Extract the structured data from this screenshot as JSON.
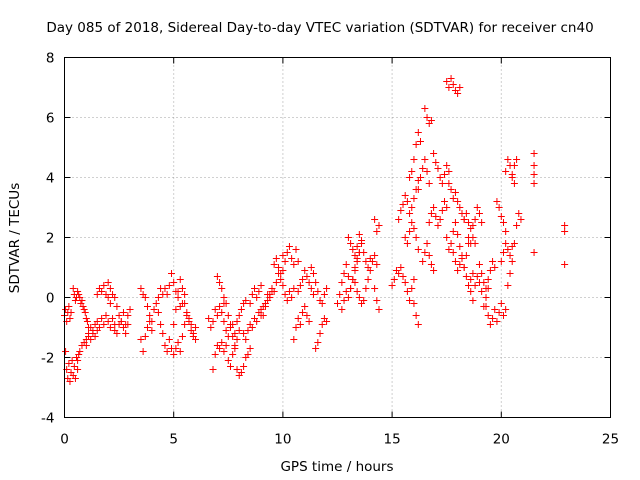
{
  "chart_data": {
    "type": "scatter",
    "title": "Day 085 of 2018, Sidereal Day-to-day VTEC variation (SDTVAR) for receiver cn40",
    "xlabel": "GPS time / hours",
    "ylabel": "SDTVAR / TECUs",
    "xlim": [
      0,
      25
    ],
    "ylim": [
      -4,
      8
    ],
    "xticks": [
      "0",
      "5",
      "10",
      "15",
      "20",
      "25"
    ],
    "yticks": [
      "-4",
      "-2",
      "0",
      "2",
      "4",
      "6",
      "8"
    ],
    "grid": true,
    "marker": "+",
    "color": "#ff0000",
    "segments": [
      {
        "x": [
          0.0,
          0.05,
          0.1,
          0.15,
          0.2,
          0.25,
          0.3
        ],
        "y": [
          -0.6,
          -0.4,
          -0.8,
          -0.5,
          -0.3,
          -0.7,
          -0.5
        ]
      },
      {
        "x": [
          0.05,
          0.1,
          0.15,
          0.2,
          0.25,
          0.3,
          0.35,
          0.4,
          0.45,
          0.5,
          0.55,
          0.6,
          0.65
        ],
        "y": [
          -1.8,
          -2.4,
          -2.7,
          -2.2,
          -2.8,
          -2.5,
          -2.1,
          -2.6,
          -2.3,
          -2.7,
          -2.0,
          -2.4,
          -1.9
        ]
      },
      {
        "x": [
          0.4,
          0.45,
          0.5,
          0.55,
          0.6,
          0.65,
          0.7,
          0.75,
          0.8,
          0.85,
          0.9,
          0.95,
          1.0,
          1.05,
          1.1
        ],
        "y": [
          0.3,
          0.1,
          -0.1,
          0.0,
          0.2,
          0.1,
          0.0,
          -0.2,
          -0.1,
          -0.3,
          -0.4,
          -0.5,
          -0.7,
          -0.8,
          -1.0
        ]
      },
      {
        "x": [
          0.6,
          0.7,
          0.8,
          0.9,
          1.0,
          1.1,
          1.2,
          1.3,
          1.4,
          1.5
        ],
        "y": [
          -2.1,
          -1.8,
          -1.6,
          -1.5,
          -1.6,
          -1.3,
          -1.4,
          -1.2,
          -1.3,
          -1.1
        ]
      },
      {
        "x": [
          1.0,
          1.1,
          1.2,
          1.3,
          1.4,
          1.5,
          1.6,
          1.7,
          1.8,
          1.9,
          2.0,
          2.1,
          2.2,
          2.3
        ],
        "y": [
          -1.4,
          -1.2,
          -1.0,
          -1.1,
          -0.9,
          -0.8,
          -1.0,
          -0.7,
          -0.9,
          -0.6,
          -0.8,
          -1.0,
          -0.7,
          -0.9
        ]
      },
      {
        "x": [
          1.5,
          1.6,
          1.7,
          1.8,
          1.9,
          2.0,
          2.1
        ],
        "y": [
          0.1,
          0.3,
          0.2,
          0.4,
          0.1,
          0.0,
          -0.2
        ]
      },
      {
        "x": [
          2.0,
          2.1,
          2.2,
          2.3,
          2.4,
          2.5,
          2.6,
          2.7,
          2.8,
          2.9,
          3.0
        ],
        "y": [
          0.5,
          0.3,
          0.1,
          0.0,
          -0.3,
          -0.6,
          -0.8,
          -0.5,
          -0.9,
          -0.6,
          -0.4
        ]
      },
      {
        "x": [
          2.3,
          2.4,
          2.5,
          2.6,
          2.7,
          2.8,
          2.9
        ],
        "y": [
          -1.1,
          -1.2,
          -0.9,
          -0.8,
          -1.0,
          -1.2,
          -0.9
        ]
      },
      {
        "x": [
          3.5,
          3.6,
          3.7,
          3.8,
          3.9,
          4.0,
          4.1,
          4.2,
          4.3,
          4.4,
          4.5
        ],
        "y": [
          0.3,
          0.1,
          0.0,
          -0.3,
          -0.6,
          -0.8,
          -0.4,
          -0.2,
          0.0,
          0.3,
          0.1
        ]
      },
      {
        "x": [
          3.5,
          3.6,
          3.7,
          3.8,
          3.9,
          4.0
        ],
        "y": [
          -1.4,
          -1.8,
          -1.3,
          -1.0,
          -0.8,
          -1.1
        ]
      },
      {
        "x": [
          4.3,
          4.4,
          4.5,
          4.6,
          4.7,
          4.8,
          4.9,
          5.0,
          5.1,
          5.2,
          5.3,
          5.4
        ],
        "y": [
          -0.5,
          -0.9,
          -1.2,
          -1.6,
          -1.8,
          -1.4,
          -1.7,
          -0.9,
          -0.4,
          0.2,
          0.6,
          0.3
        ]
      },
      {
        "x": [
          4.6,
          4.7,
          4.8,
          4.9,
          5.0,
          5.1,
          5.2,
          5.3,
          5.4,
          5.5
        ],
        "y": [
          0.3,
          0.1,
          0.4,
          0.8,
          0.5,
          0.2,
          0.0,
          -0.3,
          -0.2,
          0.1
        ]
      },
      {
        "x": [
          5.0,
          5.1,
          5.2,
          5.3,
          5.4,
          5.5,
          5.6,
          5.7,
          5.8,
          5.9,
          6.0
        ],
        "y": [
          -1.9,
          -1.7,
          -1.5,
          -1.8,
          -1.3,
          -0.9,
          -0.6,
          -0.8,
          -1.1,
          -1.3,
          -1.0
        ]
      },
      {
        "x": [
          5.5,
          5.6,
          5.7,
          5.8,
          5.9,
          6.0
        ],
        "y": [
          -0.2,
          -0.5,
          -0.7,
          -0.9,
          -1.2,
          -1.4
        ]
      },
      {
        "x": [
          6.6,
          6.7,
          6.8,
          6.9,
          7.0,
          7.1,
          7.2,
          7.3
        ],
        "y": [
          -0.7,
          -1.0,
          -0.8,
          -0.4,
          -0.6,
          -0.3,
          -0.5,
          -0.2
        ]
      },
      {
        "x": [
          6.8,
          6.9,
          7.0,
          7.1,
          7.2,
          7.3,
          7.4,
          7.5,
          7.6,
          7.7,
          7.8,
          7.9,
          8.0
        ],
        "y": [
          -2.4,
          -1.9,
          -1.6,
          -1.7,
          -1.5,
          -1.8,
          -1.6,
          -2.1,
          -2.3,
          -1.9,
          -1.7,
          -1.4,
          -1.1
        ]
      },
      {
        "x": [
          7.0,
          7.1,
          7.2,
          7.3,
          7.4,
          7.5,
          7.6,
          7.7,
          7.8
        ],
        "y": [
          0.7,
          0.5,
          0.3,
          0.0,
          -0.2,
          -0.6,
          -0.9,
          -1.3,
          -1.6
        ]
      },
      {
        "x": [
          7.3,
          7.4,
          7.5,
          7.6,
          7.7,
          7.8,
          7.9,
          8.0,
          8.1,
          8.2,
          8.3
        ],
        "y": [
          -0.8,
          -1.1,
          -1.3,
          -1.0,
          -0.9,
          -1.2,
          -0.8,
          -0.6,
          -0.4,
          -0.2,
          -0.1
        ]
      },
      {
        "x": [
          7.9,
          8.0,
          8.1,
          8.2,
          8.3,
          8.4,
          8.5
        ],
        "y": [
          -2.4,
          -2.6,
          -2.5,
          -2.3,
          -2.0,
          -1.9,
          -1.7
        ]
      },
      {
        "x": [
          8.2,
          8.3,
          8.4,
          8.5,
          8.6,
          8.7,
          8.8,
          8.9,
          9.0,
          9.1,
          9.2,
          9.3,
          9.4,
          9.5
        ],
        "y": [
          -1.2,
          -1.4,
          -1.1,
          -0.9,
          -1.0,
          -0.7,
          -0.8,
          -0.5,
          -0.6,
          -0.3,
          -0.2,
          0.1,
          0.0,
          0.2
        ]
      },
      {
        "x": [
          8.5,
          8.6,
          8.7,
          8.8,
          8.9,
          9.0
        ],
        "y": [
          -0.2,
          0.1,
          0.3,
          0.0,
          0.2,
          0.4
        ]
      },
      {
        "x": [
          9.0,
          9.1,
          9.2,
          9.3,
          9.4,
          9.5,
          9.6,
          9.7,
          9.8,
          9.9,
          10.0,
          10.1,
          10.2,
          10.3,
          10.4,
          10.5
        ],
        "y": [
          -0.4,
          -0.6,
          -0.3,
          -0.1,
          0.1,
          0.3,
          0.2,
          0.5,
          0.8,
          0.6,
          0.4,
          0.1,
          -0.1,
          0.2,
          0.0,
          0.3
        ]
      },
      {
        "x": [
          9.6,
          9.7,
          9.8,
          9.9,
          10.0
        ],
        "y": [
          1.1,
          1.3,
          1.0,
          0.8,
          0.9
        ]
      },
      {
        "x": [
          10.0,
          10.1,
          10.2,
          10.3,
          10.4,
          10.5,
          10.6,
          10.7
        ],
        "y": [
          1.4,
          1.2,
          1.5,
          1.7,
          1.3,
          1.1,
          1.6,
          1.2
        ]
      },
      {
        "x": [
          10.5,
          10.6,
          10.7,
          10.8,
          10.9,
          11.0,
          11.1,
          11.2
        ],
        "y": [
          -1.4,
          -1.0,
          -0.7,
          -0.9,
          -0.5,
          -0.3,
          -0.6,
          -0.8
        ]
      },
      {
        "x": [
          10.7,
          10.8,
          10.9,
          11.0,
          11.1,
          11.2,
          11.3,
          11.4
        ],
        "y": [
          0.2,
          0.4,
          0.6,
          0.9,
          0.7,
          0.5,
          0.3,
          0.1
        ]
      },
      {
        "x": [
          11.3,
          11.4,
          11.5,
          11.6,
          11.7,
          11.8,
          11.9,
          12.0
        ],
        "y": [
          1.0,
          0.8,
          0.5,
          0.2,
          -0.1,
          -0.2,
          0.1,
          0.3
        ]
      },
      {
        "x": [
          11.5,
          11.6,
          11.7,
          11.8,
          11.9,
          12.0
        ],
        "y": [
          -1.7,
          -1.5,
          -1.2,
          -0.9,
          -0.7,
          -0.8
        ]
      },
      {
        "x": [
          12.5,
          12.6,
          12.7,
          12.8,
          12.9,
          13.0,
          13.1,
          13.2,
          13.3,
          13.4,
          13.5,
          13.6
        ],
        "y": [
          -0.2,
          0.1,
          0.5,
          0.8,
          1.1,
          0.7,
          0.3,
          0.6,
          1.0,
          1.3,
          1.5,
          1.8
        ]
      },
      {
        "x": [
          12.7,
          12.8,
          12.9,
          13.0,
          13.1,
          13.2,
          13.3,
          13.4,
          13.5
        ],
        "y": [
          -0.4,
          -0.1,
          0.2,
          0.0,
          0.3,
          0.6,
          0.9,
          1.2,
          1.5
        ]
      },
      {
        "x": [
          13.0,
          13.1,
          13.2,
          13.3,
          13.4,
          13.5,
          13.6,
          13.7,
          13.8,
          13.9,
          14.0
        ],
        "y": [
          2.0,
          1.8,
          1.6,
          1.4,
          1.7,
          2.1,
          1.9,
          1.5,
          1.2,
          1.0,
          1.3
        ]
      },
      {
        "x": [
          13.3,
          13.4,
          13.5,
          13.6,
          13.7,
          13.8,
          13.9,
          14.0,
          14.1,
          14.2,
          14.3
        ],
        "y": [
          0.5,
          0.2,
          0.0,
          -0.2,
          -0.1,
          0.3,
          0.6,
          0.9,
          1.2,
          1.4,
          1.1
        ]
      },
      {
        "x": [
          14.2,
          14.3,
          14.4
        ],
        "y": [
          2.6,
          2.2,
          2.4
        ]
      },
      {
        "x": [
          14.2,
          14.3,
          14.4
        ],
        "y": [
          0.3,
          -0.1,
          -0.4
        ]
      },
      {
        "x": [
          15.0,
          15.1,
          15.2,
          15.3,
          15.4,
          15.5,
          15.6,
          15.7,
          15.8,
          15.9,
          16.0
        ],
        "y": [
          0.4,
          0.6,
          0.9,
          0.8,
          1.0,
          0.7,
          0.5,
          0.2,
          -0.1,
          0.3,
          0.6
        ]
      },
      {
        "x": [
          15.3,
          15.4,
          15.5,
          15.6,
          15.7,
          15.8,
          15.9,
          16.0,
          16.1,
          16.2
        ],
        "y": [
          2.6,
          2.9,
          3.1,
          3.4,
          3.2,
          2.8,
          3.0,
          3.3,
          3.6,
          3.9
        ]
      },
      {
        "x": [
          15.6,
          15.7,
          15.8,
          15.9,
          16.0,
          16.1,
          16.2
        ],
        "y": [
          2.0,
          1.8,
          2.2,
          2.5,
          2.3,
          2.0,
          1.6
        ]
      },
      {
        "x": [
          15.8,
          15.9,
          16.0,
          16.1,
          16.2,
          16.3
        ],
        "y": [
          4.0,
          4.2,
          4.6,
          5.1,
          5.5,
          5.2
        ]
      },
      {
        "x": [
          16.2,
          16.3,
          16.4,
          16.5,
          16.6,
          16.7
        ],
        "y": [
          3.6,
          4.0,
          4.3,
          4.6,
          4.2,
          3.8
        ]
      },
      {
        "x": [
          16.4,
          16.5,
          16.6,
          16.7,
          16.8,
          16.9
        ],
        "y": [
          1.2,
          1.5,
          1.8,
          1.4,
          1.1,
          0.9
        ]
      },
      {
        "x": [
          16.5,
          16.6,
          16.7,
          16.8
        ],
        "y": [
          6.3,
          6.0,
          5.8,
          5.9
        ]
      },
      {
        "x": [
          16.7,
          16.8,
          16.9,
          17.0,
          17.1,
          17.2,
          17.3,
          17.4,
          17.5
        ],
        "y": [
          2.5,
          2.8,
          3.0,
          2.7,
          2.4,
          2.6,
          2.9,
          3.2,
          3.0
        ]
      },
      {
        "x": [
          16.9,
          17.0,
          17.1,
          17.2,
          17.3,
          17.4,
          17.5,
          17.6
        ],
        "y": [
          4.8,
          4.5,
          4.3,
          4.0,
          3.8,
          4.1,
          4.4,
          4.2
        ]
      },
      {
        "x": [
          16.0,
          16.1,
          16.2
        ],
        "y": [
          -0.2,
          -0.6,
          -0.9
        ]
      },
      {
        "x": [
          17.5,
          17.6,
          17.7,
          17.8,
          17.9,
          18.0,
          18.1,
          18.2,
          18.3,
          18.4,
          18.5
        ],
        "y": [
          2.0,
          1.6,
          1.8,
          2.2,
          2.5,
          2.1,
          1.7,
          1.3,
          1.0,
          1.4,
          1.8
        ]
      },
      {
        "x": [
          17.5,
          17.6,
          17.7,
          17.8,
          17.9,
          18.0,
          18.1
        ],
        "y": [
          7.2,
          7.0,
          7.3,
          7.1,
          6.9,
          6.8,
          7.0
        ]
      },
      {
        "x": [
          17.6,
          17.7,
          17.8,
          17.9,
          18.0,
          18.1,
          18.2,
          18.3
        ],
        "y": [
          3.8,
          3.6,
          3.3,
          3.5,
          3.2,
          3.0,
          2.8,
          2.6
        ]
      },
      {
        "x": [
          17.8,
          17.9,
          18.0,
          18.1,
          18.2,
          18.3,
          18.4,
          18.5,
          18.6,
          18.7
        ],
        "y": [
          1.5,
          1.2,
          0.9,
          1.1,
          1.4,
          1.0,
          0.7,
          0.4,
          0.6,
          0.8
        ]
      },
      {
        "x": [
          18.3,
          18.4,
          18.5,
          18.6,
          18.7,
          18.8
        ],
        "y": [
          2.6,
          2.8,
          2.5,
          2.3,
          2.0,
          1.8
        ]
      },
      {
        "x": [
          18.5,
          18.6,
          18.7,
          18.8,
          18.9,
          19.0,
          19.1
        ],
        "y": [
          2.0,
          1.8,
          2.4,
          2.6,
          3.0,
          2.8,
          2.5
        ]
      },
      {
        "x": [
          18.6,
          18.7,
          18.8,
          18.9,
          19.0,
          19.1,
          19.2,
          19.3,
          19.4
        ],
        "y": [
          0.2,
          -0.1,
          0.4,
          0.7,
          0.5,
          0.2,
          -0.3,
          0.0,
          0.3
        ]
      },
      {
        "x": [
          19.0,
          19.1,
          19.2,
          19.3,
          19.4,
          19.5,
          19.6,
          19.7
        ],
        "y": [
          1.1,
          0.8,
          0.5,
          0.3,
          0.6,
          0.9,
          1.2,
          1.0
        ]
      },
      {
        "x": [
          19.3,
          19.4,
          19.5,
          19.6,
          19.7,
          19.8,
          19.9,
          20.0,
          20.1,
          20.2
        ],
        "y": [
          -0.3,
          -0.6,
          -0.9,
          -0.7,
          -0.4,
          -0.8,
          -0.5,
          -0.2,
          -0.6,
          -0.4
        ]
      },
      {
        "x": [
          19.8,
          19.9,
          20.0,
          20.1,
          20.2
        ],
        "y": [
          3.2,
          3.0,
          2.7,
          2.5,
          2.2
        ]
      },
      {
        "x": [
          20.0,
          20.1,
          20.2,
          20.3,
          20.4,
          20.5
        ],
        "y": [
          1.2,
          1.5,
          1.8,
          1.6,
          1.4,
          1.7
        ]
      },
      {
        "x": [
          20.2,
          20.3,
          20.4,
          20.5,
          20.6
        ],
        "y": [
          4.2,
          4.6,
          4.4,
          4.1,
          3.8
        ]
      },
      {
        "x": [
          20.3,
          20.4,
          20.5,
          20.6,
          20.7,
          20.8,
          20.9
        ],
        "y": [
          0.4,
          0.8,
          1.2,
          1.8,
          2.4,
          2.8,
          2.6
        ]
      },
      {
        "x": [
          20.5,
          20.6,
          20.7
        ],
        "y": [
          4.0,
          4.4,
          4.6
        ]
      },
      {
        "x": [
          21.5,
          21.5,
          21.5,
          21.5,
          21.5
        ],
        "y": [
          4.8,
          4.4,
          4.1,
          3.8,
          1.5
        ]
      },
      {
        "x": [
          22.9,
          22.9,
          22.9
        ],
        "y": [
          2.4,
          2.2,
          1.1
        ]
      }
    ]
  }
}
